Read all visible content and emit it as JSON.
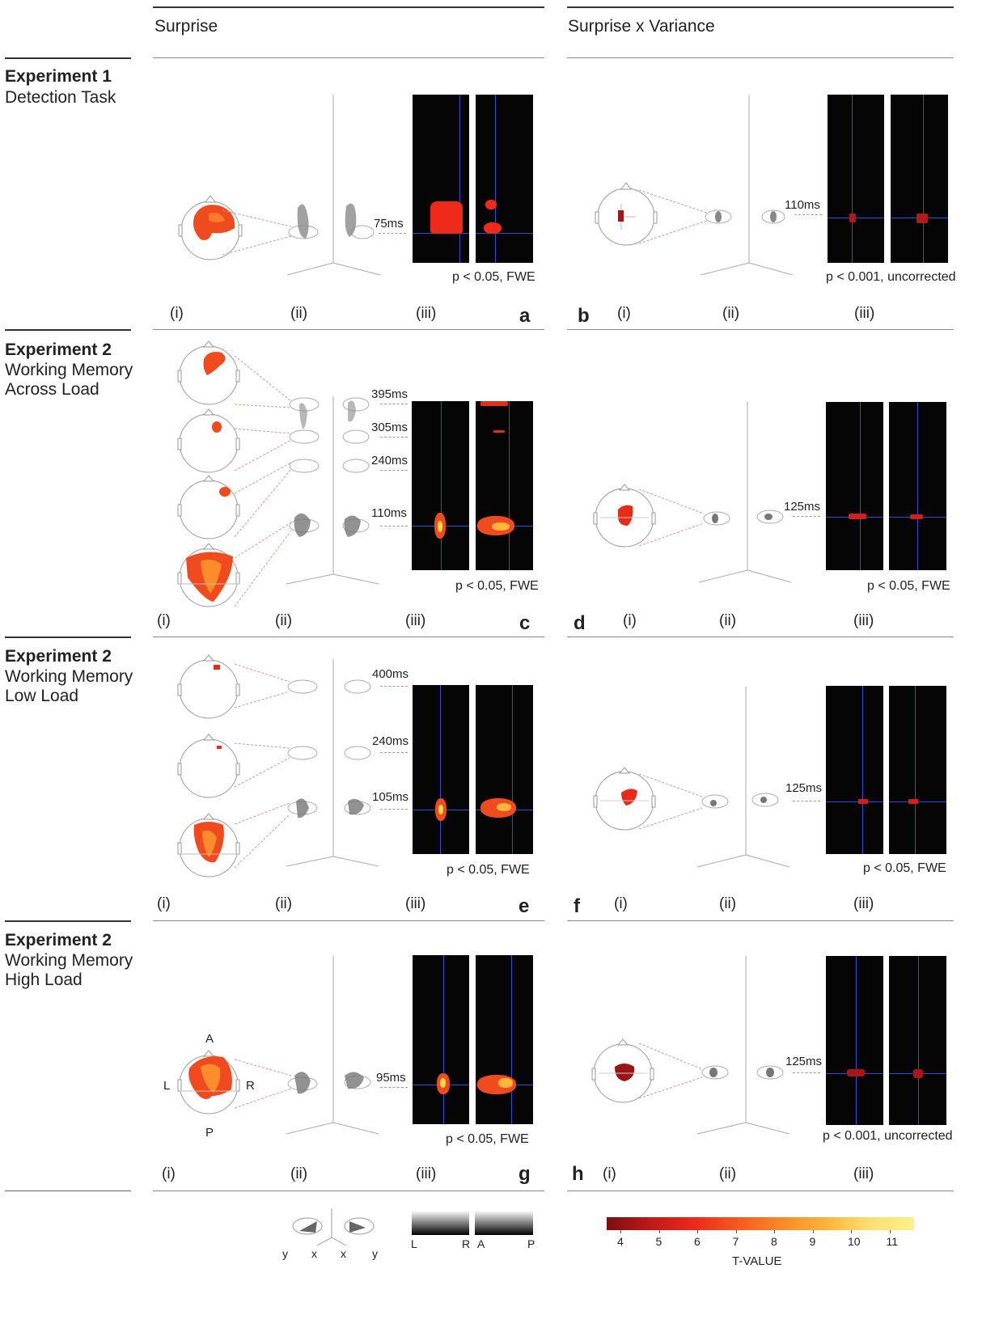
{
  "columns": {
    "left": "Surprise",
    "right": "Surprise x Variance"
  },
  "rows": [
    {
      "title": "Experiment 1",
      "subtitle": [
        "Detection Task"
      ],
      "left": {
        "letter": "a",
        "times": [
          "75ms"
        ],
        "threshold": "p < 0.05, FWE"
      },
      "right": {
        "letter": "b",
        "times": [
          "110ms"
        ],
        "threshold": "p < 0.001, uncorrected"
      }
    },
    {
      "title": "Experiment 2",
      "subtitle": [
        "Working Memory",
        "Across Load"
      ],
      "left": {
        "letter": "c",
        "times": [
          "395ms",
          "305ms",
          "240ms",
          "110ms"
        ],
        "threshold": "p < 0.05, FWE"
      },
      "right": {
        "letter": "d",
        "times": [
          "125ms"
        ],
        "threshold": "p < 0.05, FWE"
      }
    },
    {
      "title": "Experiment 2",
      "subtitle": [
        "Working Memory",
        "Low Load"
      ],
      "left": {
        "letter": "e",
        "times": [
          "400ms",
          "240ms",
          "105ms"
        ],
        "threshold": "p < 0.05, FWE"
      },
      "right": {
        "letter": "f",
        "times": [
          "125ms"
        ],
        "threshold": "p < 0.05, FWE"
      }
    },
    {
      "title": "Experiment 2",
      "subtitle": [
        "Working Memory",
        "High Load"
      ],
      "left": {
        "letter": "g",
        "times": [
          "95ms"
        ],
        "threshold": "p < 0.05, FWE"
      },
      "right": {
        "letter": "h",
        "times": [
          "125ms"
        ],
        "threshold": "p < 0.001, uncorrected"
      }
    }
  ],
  "subpanel_labels": [
    "(i)",
    "(ii)",
    "(iii)"
  ],
  "orientation": {
    "anterior": "A",
    "posterior": "P",
    "left": "L",
    "right": "R"
  },
  "axes_legend": {
    "left_axes": [
      "y",
      "x"
    ],
    "right_axes": [
      "x",
      "y"
    ],
    "grad1": [
      "L",
      "R"
    ],
    "grad2": [
      "A",
      "P"
    ]
  },
  "colorbar": {
    "label": "T-VALUE",
    "ticks": [
      "4",
      "5",
      "6",
      "7",
      "8",
      "9",
      "10",
      "11"
    ]
  }
}
